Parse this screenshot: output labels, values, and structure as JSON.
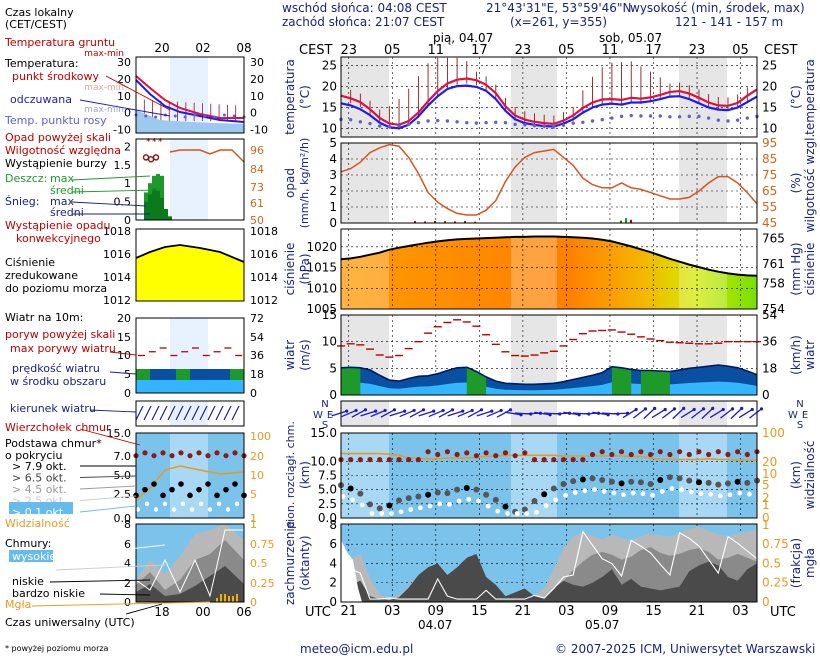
{
  "header": {
    "sunrise": "wschód słońca: 04:08 CEST",
    "sunset": "zachód słońca: 21:07 CEST",
    "coords": "21°43'31\"E, 53°59'46\"N",
    "grid": "(x=261, y=355)",
    "height_label": "wysokość (min, środek, max)",
    "height_values": "121 - 141 - 157 m",
    "cest_left": "CEST",
    "cest_right": "CEST",
    "day1": "pią, 04.07",
    "day2": "sob, 05.07",
    "top_hours": [
      "23",
      "05",
      "11",
      "17",
      "23",
      "05",
      "11",
      "17",
      "23",
      "05"
    ]
  },
  "bottom": {
    "utc_left": "UTC",
    "utc_right": "UTC",
    "hours": [
      "21",
      "03",
      "09",
      "15",
      "21",
      "03",
      "09",
      "15",
      "21",
      "03"
    ],
    "date1": "04.07",
    "date2": "05.07",
    "email": "meteo@icm.edu.pl",
    "copyright": "© 2007-2025 ICM, Uniwersytet Warszawski",
    "footnote": "* powyżej poziomu morza"
  },
  "legend": {
    "time_zone": "Czas lokalny",
    "time_zone2": "(CET/CEST)",
    "hours_top": [
      "20",
      "02",
      "08"
    ],
    "hours_bottom": [
      "18",
      "00",
      "06"
    ],
    "utc_label": "Czas uniwersalny (UTC)",
    "temp_ground": "Temperatura gruntu",
    "temp_ground_sub": "max-min",
    "temperature": "Temperatura:",
    "mid_point": "punkt środkowy",
    "mid_point_sub": "max-min",
    "apparent": "odczuwana",
    "apparent_sub": "max-min",
    "dew_point": "Temp. punktu rosy",
    "precip_above": "Opad powyżej skali",
    "humidity": "Wilgotność względna",
    "storm": "Wystąpienie burzy",
    "rain": "Deszcz:",
    "rain_max": "max",
    "rain_mid": "średni",
    "snow": "Śnieg:",
    "snow_max": "max",
    "snow_mid": "średni",
    "conv_precip": "Wystąpienie opadu",
    "conv_precip2": "konwekcyjnego",
    "pressure": "Ciśnienie",
    "pressure2": "zredukowane",
    "pressure3": "do poziomu morza",
    "wind_at": "Wiatr na 10m:",
    "gust_above": "poryw powyżej skali",
    "max_gust": "max porywy wiatru",
    "wind_speed": "prędkość wiatru",
    "wind_speed2": "w środku obszaru",
    "wind_dir": "kierunek wiatru",
    "cloud_top": "Wierzchołek chmur",
    "cloud_base": "Podstawa chmur*",
    "cloud_base2": "o pokryciu",
    "okt": [
      "> 7.9 okt.",
      "> 6.5 okt.",
      "> 4.5 okt.",
      "> 2.5 okt.",
      "> 0.1 okt."
    ],
    "visibility": "Widzialność",
    "clouds": "Chmury:",
    "high": "wysokie",
    "middle": "średnie",
    "low": "niskie",
    "very_low": "bardzo niskie",
    "fog": "Mgła"
  },
  "panels": {
    "temperature": {
      "label": "temperatura",
      "unit": "(°C)",
      "ticks": [
        10,
        15,
        20,
        25
      ]
    },
    "precip": {
      "label1": "opad",
      "label2": "(mm/h, kg/m²/h)",
      "label3": "wilgotność wzgl.",
      "unit_r": "(%)",
      "ticks_l": [
        0,
        1,
        2,
        3,
        4,
        5
      ],
      "ticks_r": [
        45,
        55,
        65,
        75,
        85,
        95
      ]
    },
    "pressure": {
      "label": "ciśnienie",
      "unit": "(hPa)",
      "unit_r": "(mm Hg)",
      "label_r": "ciśnienie",
      "ticks_l": [
        1005,
        1010,
        1015,
        1020
      ],
      "ticks_r": [
        754,
        758,
        761,
        765
      ]
    },
    "wind": {
      "label": "wiatr",
      "unit": "(m/s)",
      "unit_r": "(km/h)",
      "label_r": "wiatr",
      "ticks_l": [
        0,
        5,
        10,
        15
      ],
      "ticks_r": [
        0,
        18,
        36,
        54
      ]
    },
    "clouds_vis": {
      "label1": "pion. rozciągł. chm.",
      "label2": "(km)",
      "label_r1": "widzialność",
      "label_r2": "(km)",
      "ticks_l": [
        "0.0",
        "2.5",
        "5.0",
        "7.5",
        "10.0",
        "15.0"
      ],
      "ticks_r": [
        0,
        1,
        2,
        5,
        10,
        20,
        100
      ]
    },
    "cloud_cover": {
      "label1": "zachmurzenie",
      "label2": "(oktanty)",
      "label_r1": "mgła",
      "label_r2": "(frakcja)",
      "ticks_l": [
        0,
        2,
        4,
        6,
        8
      ],
      "ticks_r": [
        "0",
        "0.25",
        "0.5",
        "0.75",
        "1"
      ]
    }
  },
  "chart_data": [
    {
      "type": "line",
      "title": "temperatura",
      "ylabel": "(°C)",
      "ylim": [
        8,
        27
      ],
      "series": [
        {
          "name": "temperatura",
          "values": [
            17.8,
            17.2,
            16.3,
            14.6,
            12.5,
            11.2,
            10.9,
            11.8,
            13.8,
            16.5,
            18.9,
            20.7,
            21.6,
            21.9,
            21.5,
            20.4,
            18.4,
            15.3,
            13.1,
            12.1,
            11.6,
            11.3,
            11.1,
            11.9,
            13.1,
            14.9,
            16.2,
            16.9,
            17.0,
            16.8,
            17.3,
            17.1,
            17.4,
            18.0,
            18.7,
            18.9,
            18.3,
            17.3,
            16.2,
            15.5,
            15.4,
            16.1,
            17.8,
            19.3
          ]
        },
        {
          "name": "odczuwana",
          "values": [
            16.0,
            15.5,
            14.6,
            13.2,
            11.4,
            10.3,
            10.1,
            10.9,
            12.9,
            15.5,
            17.7,
            19.4,
            20.1,
            20.2,
            19.9,
            19.0,
            17.0,
            14.2,
            12.2,
            11.3,
            10.9,
            10.6,
            10.5,
            11.2,
            12.2,
            13.8,
            15.0,
            15.7,
            15.9,
            15.7,
            16.2,
            16.2,
            16.5,
            17.0,
            17.6,
            17.7,
            17.0,
            16.0,
            15.0,
            14.5,
            14.4,
            15.0,
            16.3,
            17.6
          ]
        },
        {
          "name": "punkt rosy",
          "values": [
            12.2,
            12.1,
            11.6,
            11.2,
            10.6,
            10.5,
            10.6,
            11.0,
            11.4,
            11.8,
            11.9,
            11.8,
            11.6,
            11.4,
            11.3,
            11.4,
            11.5,
            11.4,
            11.0,
            10.9,
            10.7,
            10.6,
            10.7,
            10.8,
            11.3,
            11.5,
            11.8,
            12.1,
            12.5,
            12.9,
            13.1,
            13.0,
            13.0,
            13.0,
            12.8,
            12.8,
            12.9,
            12.9,
            12.5,
            12.0,
            11.8,
            12.0,
            12.5,
            12.9
          ]
        }
      ]
    },
    {
      "type": "line",
      "title": "wilgotność wzgl.",
      "ylabel": "(%)",
      "ylim": [
        45,
        95
      ],
      "series": [
        {
          "name": "wilgotność",
          "values": [
            77,
            79,
            83,
            89,
            92,
            94,
            93,
            86,
            76,
            64,
            58,
            54,
            51,
            50,
            50,
            53,
            59,
            71,
            80,
            86,
            89,
            90,
            91,
            86,
            81,
            73,
            69,
            67,
            67,
            70,
            67,
            66,
            64,
            62,
            60,
            60,
            61,
            65,
            70,
            74,
            74,
            70,
            64,
            57
          ]
        }
      ]
    },
    {
      "type": "area",
      "title": "ciśnienie",
      "ylabel": "(hPa)",
      "ylim": [
        1005,
        1024
      ],
      "series": [
        {
          "name": "ciśnienie",
          "values": [
            1017.0,
            1017.2,
            1017.6,
            1018.1,
            1018.6,
            1019.3,
            1019.8,
            1020.2,
            1020.6,
            1021.0,
            1021.3,
            1021.6,
            1021.8,
            1021.9,
            1022.0,
            1022.1,
            1022.2,
            1022.3,
            1022.4,
            1022.4,
            1022.5,
            1022.5,
            1022.5,
            1022.4,
            1022.3,
            1022.2,
            1022.0,
            1021.7,
            1021.3,
            1020.7,
            1020.1,
            1019.4,
            1018.7,
            1017.9,
            1017.1,
            1016.4,
            1015.7,
            1015.1,
            1014.5,
            1014.0,
            1013.6,
            1013.3,
            1013.1,
            1013.0
          ]
        }
      ]
    },
    {
      "type": "line",
      "title": "wiatr",
      "ylabel": "(m/s)",
      "ylim": [
        0,
        15
      ],
      "series": [
        {
          "name": "porywy",
          "values": [
            9.2,
            9.6,
            9.4,
            8.6,
            7.5,
            7.1,
            7.4,
            8.7,
            10.0,
            11.6,
            12.8,
            13.6,
            14.1,
            13.7,
            12.9,
            11.3,
            9.5,
            8.1,
            7.4,
            7.3,
            7.5,
            7.9,
            8.2,
            9.2,
            10.4,
            11.5,
            12.0,
            12.1,
            12.2,
            11.8,
            11.4,
            10.9,
            10.5,
            10.2,
            9.9,
            9.8,
            9.7,
            9.6,
            9.6,
            9.7,
            10.0,
            10.0,
            10.0,
            10.0
          ]
        },
        {
          "name": "prędkość",
          "values": [
            5.1,
            5.2,
            5.1,
            4.7,
            3.7,
            2.8,
            2.6,
            3.1,
            3.5,
            3.6,
            4.0,
            4.6,
            5.1,
            5.2,
            4.4,
            3.4,
            2.6,
            2.2,
            2.1,
            2.0,
            2.0,
            2.1,
            2.2,
            2.5,
            2.9,
            3.3,
            3.7,
            4.2,
            5.3,
            5.1,
            4.8,
            4.6,
            4.6,
            4.5,
            4.4,
            4.7,
            5.0,
            5.2,
            5.4,
            5.6,
            5.4,
            5.1,
            4.5,
            3.8
          ]
        }
      ]
    },
    {
      "type": "line",
      "title": "widzialność",
      "ylabel": "(km)",
      "ylim": [
        0,
        100
      ],
      "series": [
        {
          "name": "widzialność",
          "values": [
            32,
            32,
            32,
            32,
            32,
            31,
            29,
            25,
            24,
            24,
            24,
            25,
            25,
            25,
            26,
            27,
            28,
            29,
            29,
            29,
            29,
            29,
            29,
            28,
            28,
            28,
            28,
            28,
            28,
            28,
            27,
            27,
            25,
            23,
            23,
            23,
            23,
            23,
            24,
            23,
            23,
            22,
            22,
            22
          ]
        }
      ]
    },
    {
      "type": "area",
      "title": "zachmurzenie",
      "ylabel": "(oktanty)",
      "ylim": [
        0,
        8
      ],
      "series": [
        {
          "name": "niskie",
          "values": [
            1.2,
            1.8,
            2.2,
            0.6,
            0.3,
            0.2,
            0.5,
            1.5,
            2.8,
            3.6,
            4.0,
            2.8,
            3.6,
            4.6,
            5.0,
            2.6,
            1.8,
            0.6,
            1.0,
            1.4,
            0.6,
            0.4,
            1.4,
            2.2,
            1.8,
            1.6,
            2.0,
            2.6,
            3.4,
            1.8,
            2.4,
            1.6,
            1.4,
            1.2,
            1.4,
            1.6,
            3.2,
            3.8,
            4.2,
            3.8,
            2.6,
            2.2,
            3.4,
            4.0
          ]
        },
        {
          "name": "średnie",
          "values": [
            0.2,
            0.4,
            0.6,
            0.4,
            0.2,
            0.1,
            0.3,
            1.1,
            2.0,
            2.2,
            2.0,
            1.5,
            2.2,
            2.7,
            1.5,
            0.8,
            0.4,
            0.3,
            0.3,
            0.2,
            0.3,
            0.5,
            1.4,
            2.2,
            3.3,
            4.2,
            4.9,
            5.2,
            4.9,
            4.4,
            4.7,
            5.4,
            5.7,
            5.1,
            4.8,
            5.0,
            5.4,
            5.6,
            5.2,
            4.4,
            4.6,
            5.0,
            4.6,
            4.2
          ]
        },
        {
          "name": "wysokie",
          "values": [
            2.6,
            4.4,
            5.0,
            2.5,
            0.8,
            0.4,
            0.7,
            1.6,
            2.8,
            3.0,
            2.4,
            1.6,
            2.0,
            2.9,
            2.3,
            1.2,
            0.6,
            0.4,
            0.4,
            0.5,
            0.7,
            1.4,
            3.4,
            5.6,
            6.8,
            7.3,
            6.9,
            6.5,
            7.0,
            6.7,
            6.4,
            6.8,
            7.1,
            6.9,
            6.8,
            7.2,
            7.6,
            7.8,
            7.4,
            7.0,
            6.8,
            7.1,
            7.3,
            7.5
          ]
        }
      ]
    }
  ]
}
